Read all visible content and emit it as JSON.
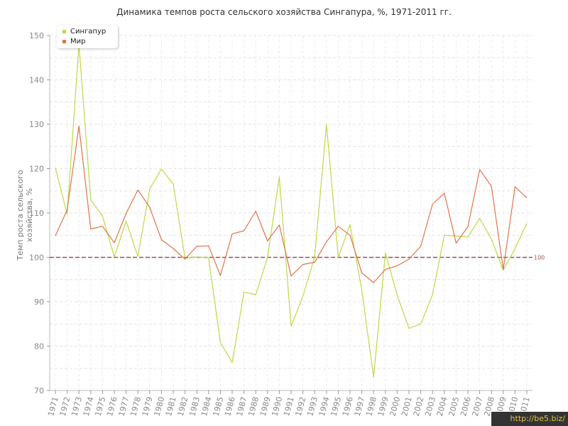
{
  "chart_data": {
    "type": "line",
    "title": "Динамика темпов роста сельского хозяйства Сингапура, %, 1971-2011 гг.",
    "ylabel": "Темп роста сельского хозяйства, %",
    "xlabel": "",
    "ylim": [
      70,
      150
    ],
    "yticks": [
      70,
      80,
      90,
      100,
      110,
      120,
      130,
      140,
      150
    ],
    "grid": true,
    "legend_position": "top-left",
    "reference_line": {
      "value": 100,
      "label": "100",
      "color": "#a05050"
    },
    "x": [
      1971,
      1972,
      1973,
      1974,
      1975,
      1976,
      1977,
      1978,
      1979,
      1980,
      1981,
      1982,
      1983,
      1984,
      1985,
      1986,
      1987,
      1988,
      1989,
      1990,
      1991,
      1992,
      1993,
      1994,
      1995,
      1996,
      1997,
      1998,
      1999,
      2000,
      2001,
      2002,
      2003,
      2004,
      2005,
      2006,
      2007,
      2008,
      2009,
      2010,
      2011
    ],
    "series": [
      {
        "name": "Сингапур",
        "color": "#bcd946",
        "values": [
          120.2,
          109.7,
          148.0,
          113.0,
          109.3,
          100.1,
          108.2,
          100.2,
          115.4,
          119.9,
          116.5,
          99.8,
          100.1,
          99.9,
          80.8,
          76.3,
          92.2,
          91.6,
          100.0,
          118.1,
          84.5,
          91.2,
          100.1,
          130.0,
          100.0,
          107.4,
          92.6,
          73.0,
          101.0,
          91.5,
          84.0,
          85.0,
          91.6,
          105.0,
          104.8,
          104.6,
          108.8,
          104.1,
          97.1,
          102.0,
          107.7
        ]
      },
      {
        "name": "Мир",
        "color": "#e0744a",
        "values": [
          104.9,
          110.7,
          129.6,
          106.4,
          107.0,
          103.3,
          109.9,
          115.2,
          111.3,
          104.0,
          102.0,
          99.6,
          102.5,
          102.6,
          95.9,
          105.3,
          106.0,
          110.4,
          103.7,
          107.3,
          95.8,
          98.4,
          98.9,
          103.5,
          107.0,
          105.0,
          96.5,
          94.3,
          97.3,
          98.1,
          99.6,
          102.5,
          112.0,
          114.5,
          103.2,
          106.9,
          119.8,
          116.0,
          97.3,
          115.9,
          113.4
        ]
      }
    ]
  },
  "watermark": "http://be5.biz/"
}
